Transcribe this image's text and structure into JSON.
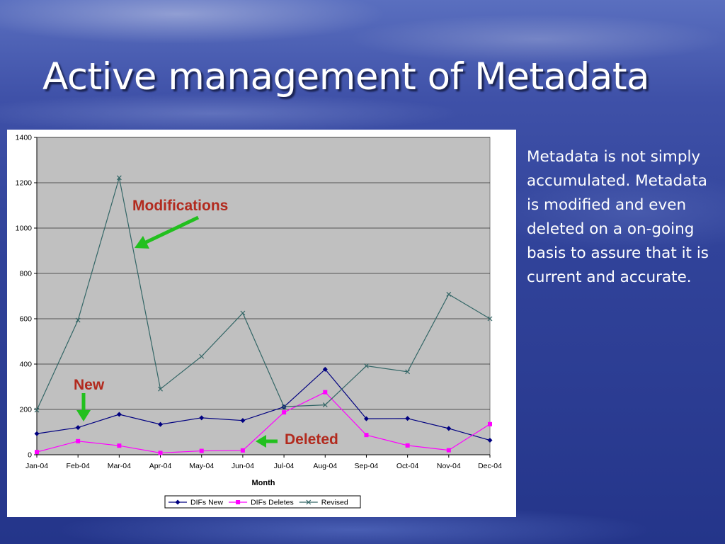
{
  "slide": {
    "title": "Active management of Metadata",
    "side_text": "Metadata is not simply accumulated. Metadata is modified and even deleted on a on-going basis to assure that it is current and accurate."
  },
  "annotations": {
    "modifications": "Modifications",
    "new": "New",
    "deleted": "Deleted",
    "label_color": "#b22a1e",
    "arrow_color": "#22c01e"
  },
  "chart_data": {
    "type": "line",
    "title": "",
    "xlabel": "Month",
    "ylabel": "",
    "ylim": [
      0,
      1400
    ],
    "yticks": [
      0,
      200,
      400,
      600,
      800,
      1000,
      1200,
      1400
    ],
    "categories": [
      "Jan-04",
      "Feb-04",
      "Mar-04",
      "Apr-04",
      "May-04",
      "Jun-04",
      "Jul-04",
      "Aug-04",
      "Sep-04",
      "Oct-04",
      "Nov-04",
      "Dec-04"
    ],
    "grid": true,
    "legend_position": "bottom",
    "plot_background": "#c0c0c0",
    "series": [
      {
        "name": "DIFs New",
        "color": "#000080",
        "marker": "diamond",
        "values": [
          93,
          120,
          178,
          134,
          163,
          151,
          211,
          377,
          159,
          160,
          116,
          64
        ]
      },
      {
        "name": "DIFs Deletes",
        "color": "#ff00ff",
        "marker": "square",
        "values": [
          12,
          60,
          40,
          8,
          17,
          19,
          187,
          276,
          87,
          41,
          20,
          135
        ]
      },
      {
        "name": "Revised",
        "color": "#336666",
        "marker": "x",
        "values": [
          197,
          594,
          1222,
          290,
          434,
          625,
          212,
          220,
          392,
          366,
          708,
          600
        ]
      }
    ]
  }
}
